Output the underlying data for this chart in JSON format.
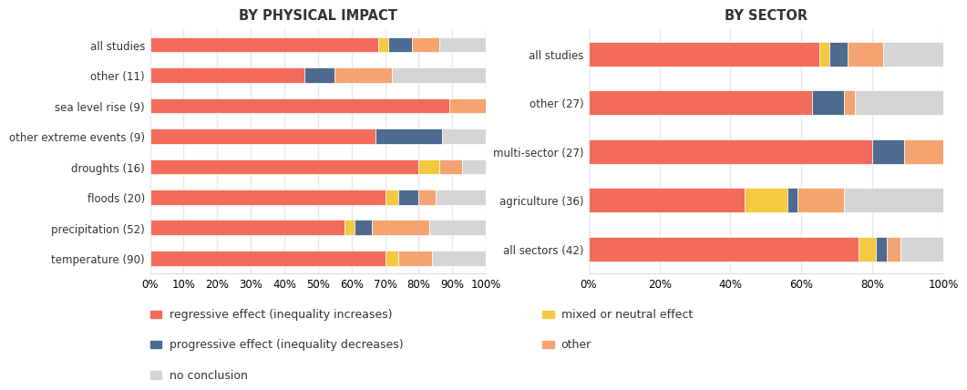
{
  "left_title": "BY PHYSICAL IMPACT",
  "right_title": "BY SECTOR",
  "colors": {
    "regressive": "#F26B5B",
    "progressive": "#4E6A8E",
    "mixed": "#F5C842",
    "other": "#F4A470",
    "no_conclusion": "#D5D5D5"
  },
  "left_categories": [
    "all studies",
    "other (11)",
    "sea level rise (9)",
    "other extreme events (9)",
    "droughts (16)",
    "floods (20)",
    "precipitation (52)",
    "temperature (90)"
  ],
  "left_data": {
    "regressive": [
      68,
      46,
      89,
      67,
      80,
      70,
      58,
      70
    ],
    "mixed": [
      3,
      0,
      0,
      0,
      6,
      4,
      3,
      4
    ],
    "progressive": [
      7,
      9,
      0,
      20,
      0,
      6,
      5,
      0
    ],
    "other": [
      8,
      17,
      11,
      0,
      7,
      5,
      17,
      10
    ],
    "no_conclusion": [
      14,
      28,
      0,
      13,
      7,
      15,
      17,
      16
    ]
  },
  "right_categories": [
    "all studies",
    "other (27)",
    "multi-sector (27)",
    "agriculture (36)",
    "all sectors (42)"
  ],
  "right_data": {
    "regressive": [
      65,
      63,
      80,
      44,
      76
    ],
    "mixed": [
      3,
      0,
      0,
      12,
      5
    ],
    "progressive": [
      5,
      9,
      9,
      3,
      3
    ],
    "other": [
      10,
      3,
      11,
      13,
      4
    ],
    "no_conclusion": [
      17,
      25,
      0,
      28,
      12
    ]
  },
  "legend_items_col1": [
    [
      "regressive",
      "regressive effect (inequality increases)"
    ],
    [
      "progressive",
      "progressive effect (inequality decreases)"
    ],
    [
      "no_conclusion",
      "no conclusion"
    ]
  ],
  "legend_items_col2": [
    [
      "mixed",
      "mixed or neutral effect"
    ],
    [
      "other",
      "other"
    ]
  ],
  "bar_height": 0.5,
  "background_color": "#FFFFFF",
  "grid_color": "#E8E8E8"
}
